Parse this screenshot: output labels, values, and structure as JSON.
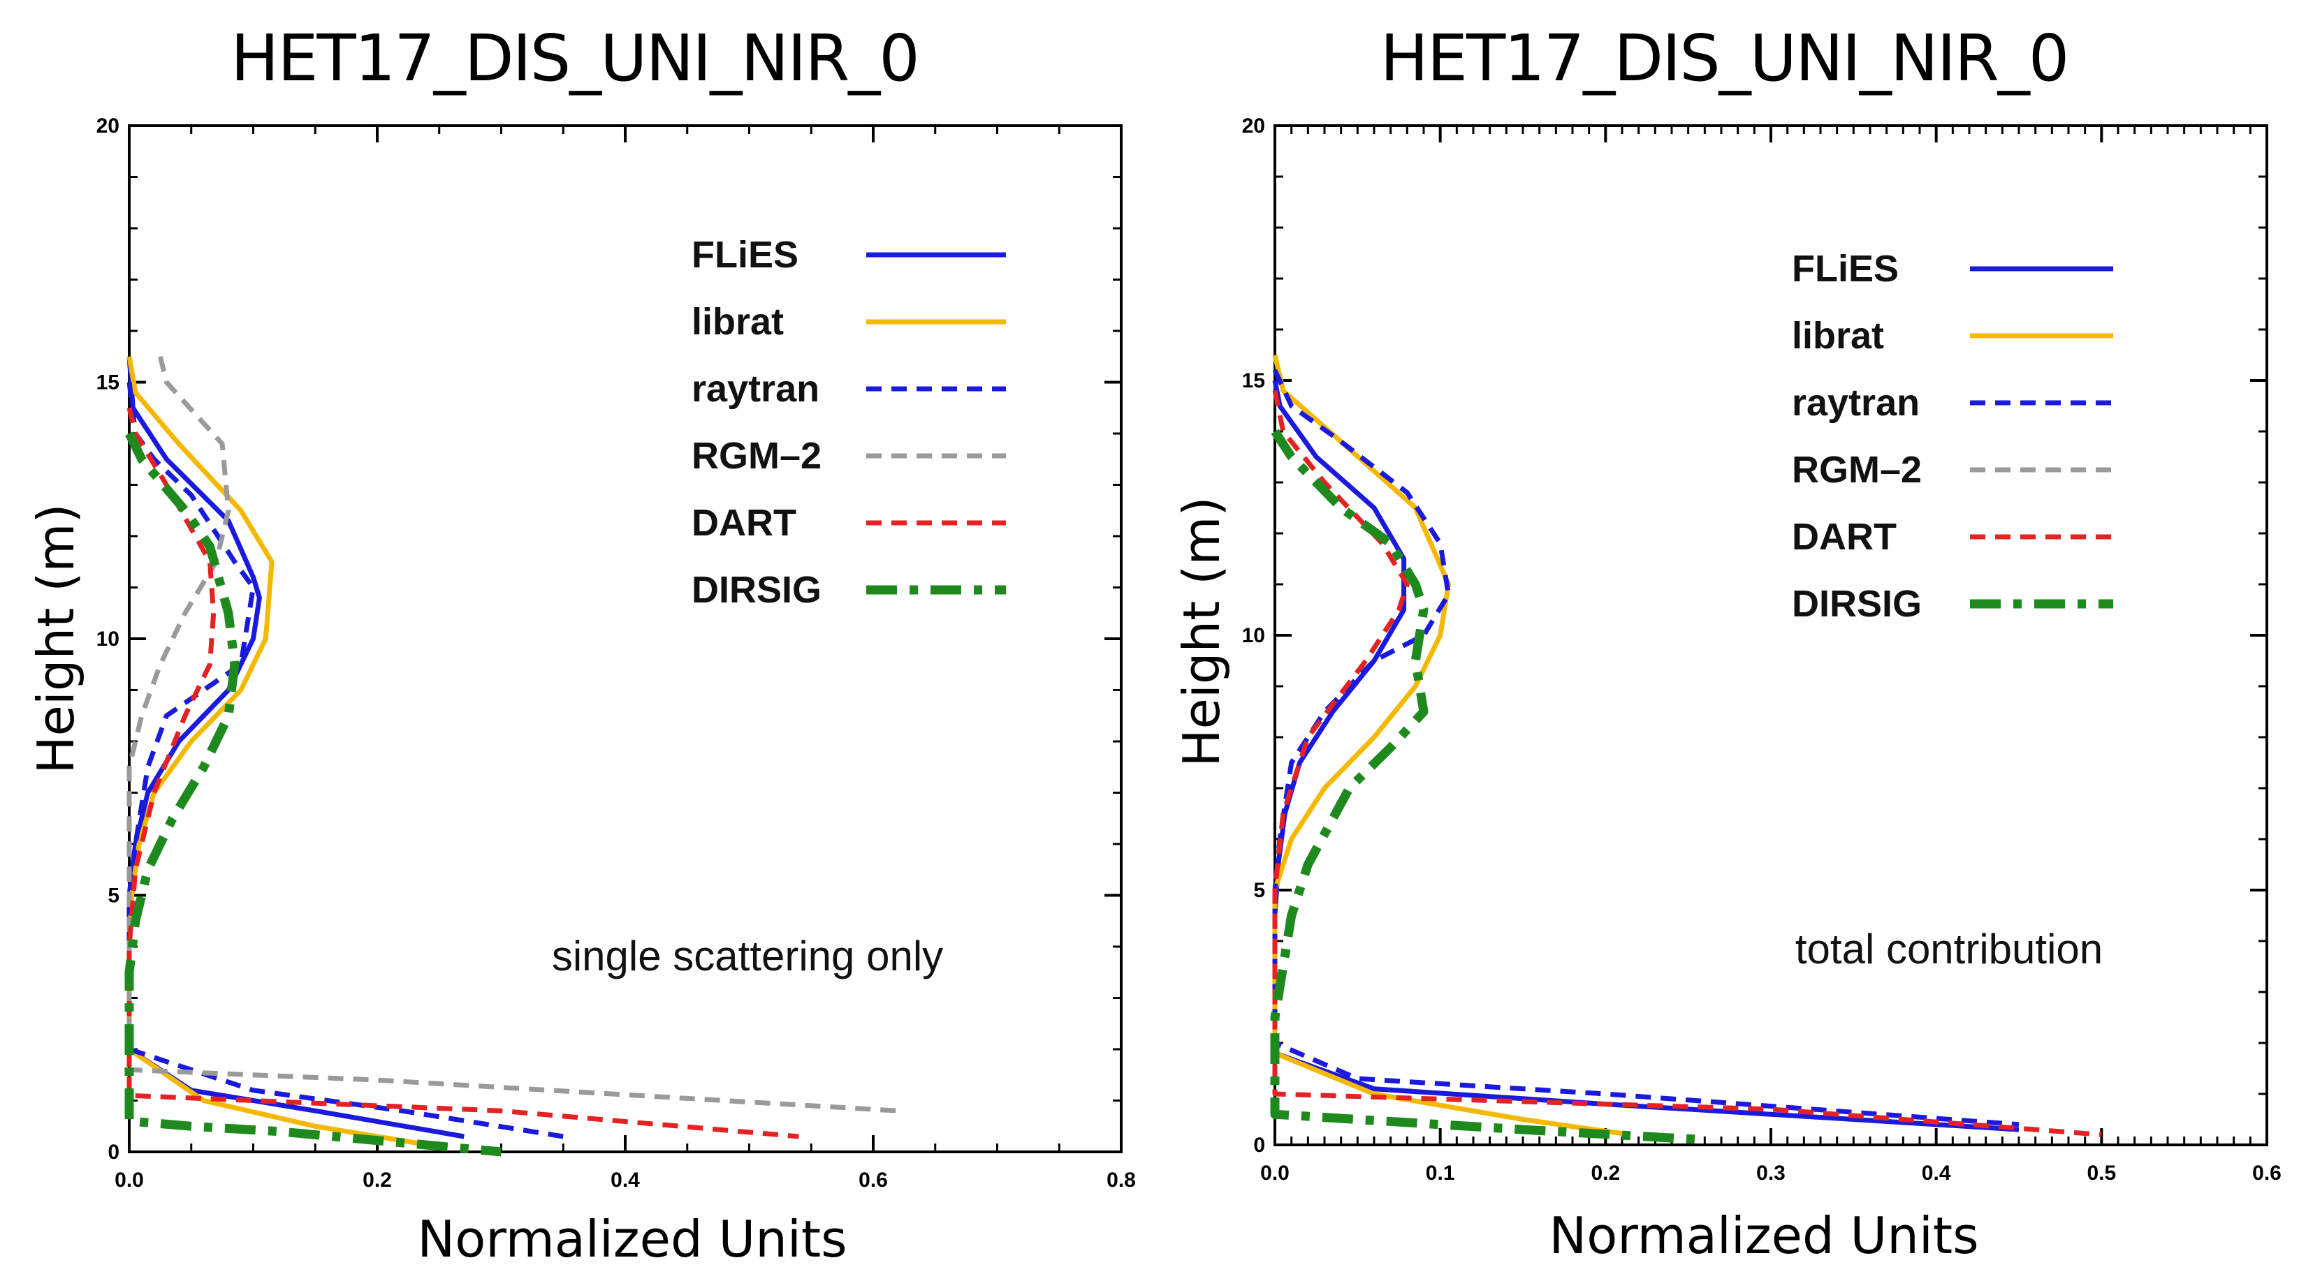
{
  "chart_data": [
    {
      "type": "line",
      "title": "HET17_DIS_UNI_NIR_0",
      "xlabel": "Normalized Units",
      "ylabel": "Height (m)",
      "xlim": [
        0,
        0.8
      ],
      "ylim": [
        0,
        20
      ],
      "xticks": [
        "0.0",
        "0.2",
        "0.4",
        "0.6",
        "0.8"
      ],
      "yticks": [
        "0",
        "5",
        "10",
        "15",
        "20"
      ],
      "annotation": "single scattering only",
      "legend": [
        "FLiES",
        "librat",
        "raytran",
        "RGM–2",
        "DART",
        "DIRSIG"
      ],
      "series": [
        {
          "name": "FLiES",
          "color": "#1a1adf",
          "style": "solid",
          "x": [
            0.0,
            0.003,
            0.03,
            0.08,
            0.1,
            0.105,
            0.1,
            0.08,
            0.04,
            0.015,
            0.005,
            0.0,
            0.0,
            0.0,
            0.05,
            0.15,
            0.27
          ],
          "y": [
            15.5,
            14.5,
            13.5,
            12.3,
            11.2,
            10.8,
            10.0,
            9.0,
            8.0,
            7.0,
            6.0,
            5.0,
            3.0,
            2.0,
            1.2,
            0.8,
            0.3
          ]
        },
        {
          "name": "librat",
          "color": "#f5b800",
          "style": "solid",
          "x": [
            0.0,
            0.005,
            0.04,
            0.09,
            0.115,
            0.11,
            0.09,
            0.05,
            0.02,
            0.008,
            0.002,
            0.0,
            0.0,
            0.0,
            0.06,
            0.15,
            0.25
          ],
          "y": [
            15.5,
            14.8,
            13.8,
            12.5,
            11.5,
            10.0,
            9.0,
            8.0,
            7.0,
            6.0,
            5.0,
            4.0,
            3.0,
            2.0,
            1.0,
            0.5,
            0.1
          ]
        },
        {
          "name": "raytran",
          "color": "#1a1adf",
          "style": "dotted",
          "x": [
            0.0,
            0.005,
            0.02,
            0.05,
            0.085,
            0.1,
            0.09,
            0.06,
            0.03,
            0.015,
            0.005,
            0.0,
            0.0,
            0.0,
            0.1,
            0.22,
            0.35
          ],
          "y": [
            15.0,
            14.0,
            13.5,
            12.8,
            11.5,
            11.0,
            9.5,
            9.0,
            8.5,
            7.5,
            6.0,
            5.0,
            3.0,
            2.0,
            1.2,
            0.8,
            0.3
          ]
        },
        {
          "name": "RGM–2",
          "color": "#9a9a9a",
          "style": "dotted",
          "x": [
            0.025,
            0.03,
            0.06,
            0.075,
            0.08,
            0.07,
            0.045,
            0.025,
            0.01,
            0.0,
            0.0,
            0.0,
            0.0,
            0.0,
            0.2,
            0.62
          ],
          "y": [
            15.5,
            15.0,
            14.2,
            13.8,
            12.5,
            11.5,
            10.5,
            9.5,
            8.5,
            7.5,
            5.0,
            3.0,
            2.0,
            1.6,
            1.4,
            0.8
          ]
        },
        {
          "name": "DART",
          "color": "#e52222",
          "style": "dotted",
          "x": [
            0.0,
            0.005,
            0.03,
            0.065,
            0.068,
            0.065,
            0.045,
            0.02,
            0.005,
            0.0,
            0.0,
            0.0,
            0.0,
            0.3,
            0.54
          ],
          "y": [
            14.5,
            14.0,
            13.0,
            11.5,
            10.5,
            9.5,
            8.5,
            7.0,
            5.5,
            4.0,
            3.0,
            2.0,
            1.1,
            0.8,
            0.3
          ]
        },
        {
          "name": "DIRSIG",
          "color": "#1e8a1e",
          "style": "dashdot",
          "x": [
            0.0,
            0.01,
            0.045,
            0.065,
            0.08,
            0.085,
            0.08,
            0.06,
            0.035,
            0.015,
            0.005,
            0.0,
            0.0,
            0.0,
            0.05,
            0.12,
            0.3
          ],
          "y": [
            14.0,
            13.5,
            12.5,
            11.8,
            10.5,
            9.5,
            8.5,
            7.5,
            6.5,
            5.5,
            4.5,
            3.5,
            2.5,
            0.6,
            0.5,
            0.4,
            0.0
          ]
        }
      ]
    },
    {
      "type": "line",
      "title": "HET17_DIS_UNI_NIR_0",
      "xlabel": "Normalized Units",
      "ylabel": "Height (m)",
      "xlim": [
        0,
        0.6
      ],
      "ylim": [
        0,
        20
      ],
      "xticks": [
        "0.0",
        "0.1",
        "0.2",
        "0.3",
        "0.4",
        "0.5",
        "0.6"
      ],
      "yticks": [
        "0",
        "5",
        "10",
        "15",
        "20"
      ],
      "annotation": "total contribution",
      "legend": [
        "FLiES",
        "librat",
        "raytran",
        "RGM–2",
        "DART",
        "DIRSIG"
      ],
      "series": [
        {
          "name": "FLiES",
          "color": "#1a1adf",
          "style": "solid",
          "x": [
            0.0,
            0.003,
            0.025,
            0.06,
            0.078,
            0.078,
            0.06,
            0.035,
            0.015,
            0.006,
            0.002,
            0.0,
            0.0,
            0.0,
            0.06,
            0.2,
            0.45
          ],
          "y": [
            15.0,
            14.5,
            13.5,
            12.5,
            11.5,
            10.5,
            9.5,
            8.5,
            7.5,
            6.5,
            5.5,
            4.5,
            3.0,
            1.8,
            1.1,
            0.8,
            0.3
          ]
        },
        {
          "name": "librat",
          "color": "#f5b800",
          "style": "solid",
          "x": [
            0.0,
            0.005,
            0.04,
            0.085,
            0.105,
            0.1,
            0.085,
            0.06,
            0.03,
            0.01,
            0.0,
            0.0,
            0.0,
            0.0,
            0.06,
            0.15,
            0.215
          ],
          "y": [
            15.5,
            14.8,
            13.8,
            12.5,
            11.0,
            10.0,
            9.0,
            8.0,
            7.0,
            6.0,
            5.0,
            3.0,
            2.0,
            1.8,
            1.0,
            0.5,
            0.2
          ]
        },
        {
          "name": "raytran",
          "color": "#1a1adf",
          "style": "dotted",
          "x": [
            0.0,
            0.01,
            0.04,
            0.08,
            0.1,
            0.105,
            0.09,
            0.06,
            0.03,
            0.01,
            0.003,
            0.0,
            0.0,
            0.0,
            0.05,
            0.2,
            0.45
          ],
          "y": [
            15.2,
            14.5,
            13.8,
            12.8,
            11.8,
            10.8,
            10.0,
            9.5,
            8.5,
            7.5,
            6.0,
            5.0,
            3.0,
            2.0,
            1.3,
            1.0,
            0.4
          ]
        },
        {
          "name": "DART",
          "color": "#e52222",
          "style": "dotted",
          "x": [
            0.0,
            0.005,
            0.03,
            0.065,
            0.08,
            0.075,
            0.055,
            0.02,
            0.005,
            0.0,
            0.0,
            0.0,
            0.0,
            0.3,
            0.5
          ],
          "y": [
            14.8,
            14.0,
            13.0,
            11.8,
            11.0,
            10.5,
            9.5,
            8.0,
            6.5,
            5.0,
            3.0,
            2.0,
            1.0,
            0.7,
            0.2
          ]
        },
        {
          "name": "DIRSIG",
          "color": "#1e8a1e",
          "style": "dashdot",
          "x": [
            0.0,
            0.01,
            0.04,
            0.07,
            0.085,
            0.09,
            0.085,
            0.09,
            0.07,
            0.045,
            0.02,
            0.01,
            0.005,
            0.0,
            0.0,
            0.0,
            0.05,
            0.15,
            0.26
          ],
          "y": [
            14.0,
            13.5,
            12.5,
            11.8,
            11.0,
            10.5,
            9.5,
            8.5,
            7.8,
            7.0,
            5.5,
            4.5,
            3.5,
            2.5,
            1.5,
            0.6,
            0.5,
            0.3,
            0.1
          ]
        }
      ]
    }
  ]
}
